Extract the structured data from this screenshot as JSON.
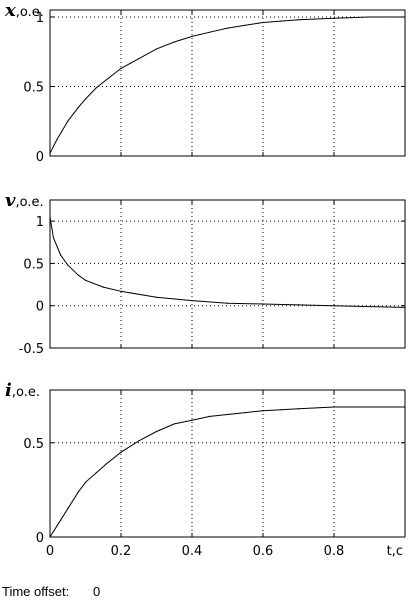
{
  "chart_data": [
    {
      "type": "line",
      "ylabel_var": "x",
      "ylabel_unit": ",o.e.",
      "xlim": [
        0,
        1
      ],
      "ylim": [
        0,
        1.05
      ],
      "grid": true,
      "yticks": [
        {
          "v": 0,
          "label": "0"
        },
        {
          "v": 0.5,
          "label": "0.5"
        },
        {
          "v": 1,
          "label": "1"
        }
      ],
      "series": [
        {
          "x": [
            0,
            0.02,
            0.05,
            0.08,
            0.1,
            0.13,
            0.16,
            0.2,
            0.25,
            0.3,
            0.35,
            0.4,
            0.45,
            0.5,
            0.55,
            0.6,
            0.65,
            0.7,
            0.75,
            0.8,
            0.85,
            0.9,
            0.95,
            1.0
          ],
          "y": [
            0.02,
            0.12,
            0.25,
            0.35,
            0.41,
            0.49,
            0.55,
            0.63,
            0.7,
            0.77,
            0.82,
            0.86,
            0.89,
            0.92,
            0.94,
            0.96,
            0.97,
            0.98,
            0.985,
            0.99,
            0.995,
            1.0,
            1.0,
            1.0
          ]
        }
      ]
    },
    {
      "type": "line",
      "ylabel_var": "v",
      "ylabel_unit": ",o.e.",
      "xlim": [
        0,
        1
      ],
      "ylim": [
        -0.5,
        1.25
      ],
      "grid": true,
      "yticks": [
        {
          "v": -0.5,
          "label": "-0.5"
        },
        {
          "v": 0,
          "label": "0"
        },
        {
          "v": 0.5,
          "label": "0.5"
        },
        {
          "v": 1,
          "label": "1"
        }
      ],
      "series": [
        {
          "x": [
            0,
            0.01,
            0.02,
            0.03,
            0.05,
            0.08,
            0.1,
            0.15,
            0.2,
            0.3,
            0.4,
            0.5,
            0.6,
            0.7,
            0.8,
            0.9,
            1.0
          ],
          "y": [
            1.05,
            0.8,
            0.7,
            0.6,
            0.48,
            0.36,
            0.3,
            0.22,
            0.17,
            0.1,
            0.06,
            0.03,
            0.02,
            0.01,
            0.0,
            -0.01,
            -0.02
          ]
        }
      ]
    },
    {
      "type": "line",
      "ylabel_var": "i",
      "ylabel_unit": ",o.e.",
      "xlim": [
        0,
        1
      ],
      "ylim": [
        0,
        0.78
      ],
      "grid": true,
      "yticks": [
        {
          "v": 0,
          "label": "0"
        },
        {
          "v": 0.5,
          "label": "0.5"
        }
      ],
      "series": [
        {
          "x": [
            0,
            0.02,
            0.05,
            0.08,
            0.1,
            0.13,
            0.16,
            0.2,
            0.25,
            0.3,
            0.35,
            0.4,
            0.45,
            0.5,
            0.55,
            0.6,
            0.65,
            0.7,
            0.75,
            0.8,
            0.85,
            0.9,
            0.95,
            1.0
          ],
          "y": [
            0.0,
            0.06,
            0.15,
            0.24,
            0.29,
            0.34,
            0.39,
            0.45,
            0.51,
            0.56,
            0.6,
            0.62,
            0.64,
            0.65,
            0.66,
            0.67,
            0.675,
            0.68,
            0.685,
            0.69,
            0.69,
            0.69,
            0.69,
            0.69
          ]
        }
      ]
    }
  ],
  "xaxis": {
    "ticks": [
      {
        "v": 0,
        "label": "0"
      },
      {
        "v": 0.2,
        "label": "0.2"
      },
      {
        "v": 0.4,
        "label": "0.4"
      },
      {
        "v": 0.6,
        "label": "0.6"
      },
      {
        "v": 0.8,
        "label": "0.8"
      }
    ],
    "label": "t,c"
  },
  "footer": {
    "label": "Time offset:",
    "value": "0"
  }
}
